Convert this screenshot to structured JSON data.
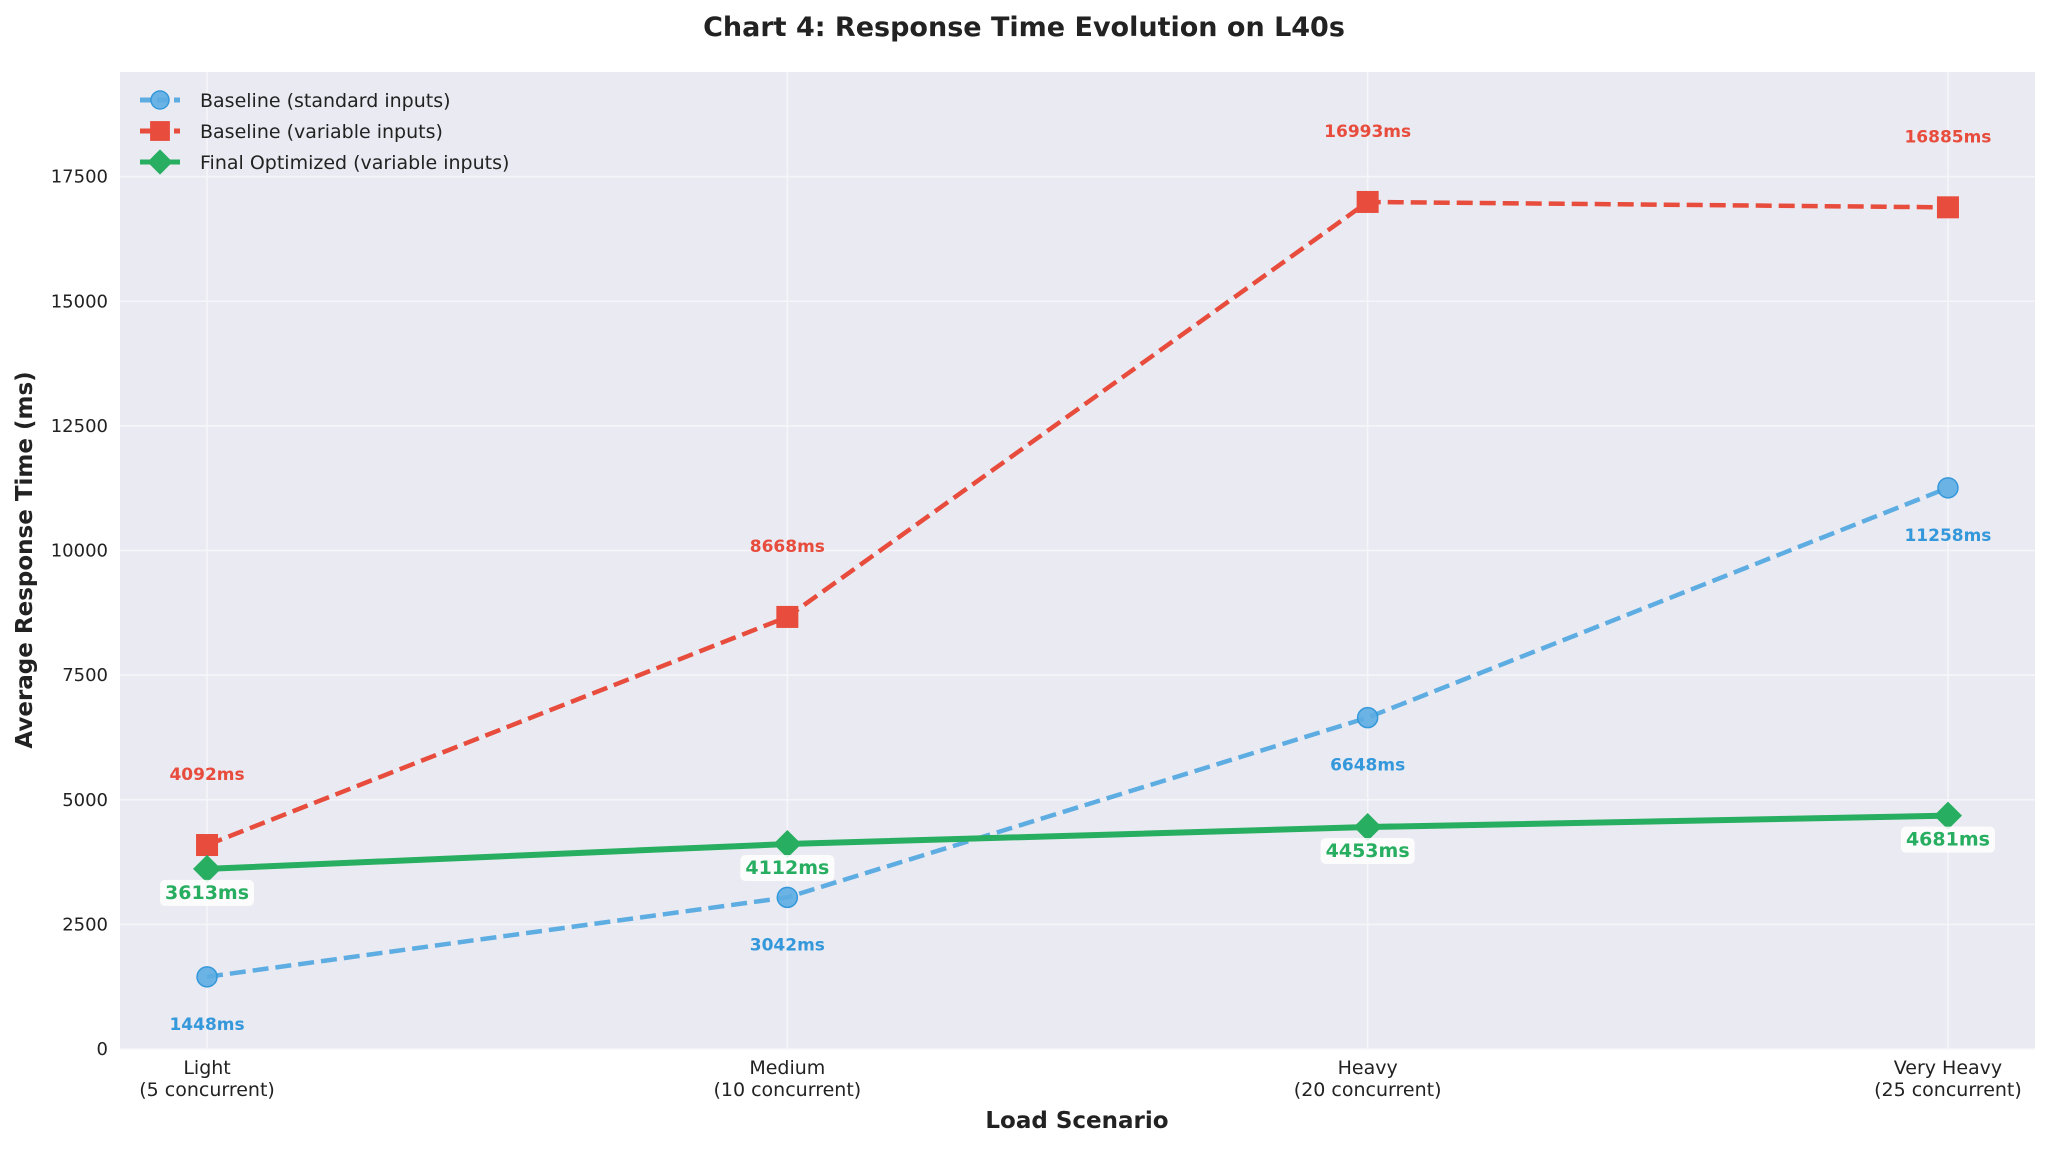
{
  "chart_data": {
    "type": "line",
    "title": "Chart 4: Response Time Evolution on L40s",
    "xlabel": "Load Scenario",
    "ylabel": "Average Response Time (ms)",
    "categories": [
      [
        "Light",
        "(5 concurrent)"
      ],
      [
        "Medium",
        "(10 concurrent)"
      ],
      [
        "Heavy",
        "(20 concurrent)"
      ],
      [
        "Very Heavy",
        "(25 concurrent)"
      ]
    ],
    "ylim": [
      0,
      19600
    ],
    "yticks": [
      0,
      2500,
      5000,
      7500,
      10000,
      12500,
      15000,
      17500
    ],
    "grid": true,
    "legend": "top-left",
    "series": [
      {
        "name": "Baseline (standard inputs)",
        "values": [
          1448,
          3042,
          6648,
          11258
        ],
        "labels": [
          "1448ms",
          "3042ms",
          "6648ms",
          "11258ms"
        ],
        "color": "#5dade2",
        "label_color": "#3498db",
        "marker": "circle",
        "dash": true
      },
      {
        "name": "Baseline (variable inputs)",
        "values": [
          4092,
          8668,
          16993,
          16885
        ],
        "labels": [
          "4092ms",
          "8668ms",
          "16993ms",
          "16885ms"
        ],
        "color": "#e74c3c",
        "label_color": "#e74c3c",
        "marker": "square",
        "dash": true
      },
      {
        "name": "Final Optimized (variable inputs)",
        "values": [
          3613,
          4112,
          4453,
          4681
        ],
        "labels": [
          "3613ms",
          "4112ms",
          "4453ms",
          "4681ms"
        ],
        "color": "#27ae60",
        "label_color": "#27ae60",
        "marker": "diamond",
        "dash": false
      }
    ]
  }
}
